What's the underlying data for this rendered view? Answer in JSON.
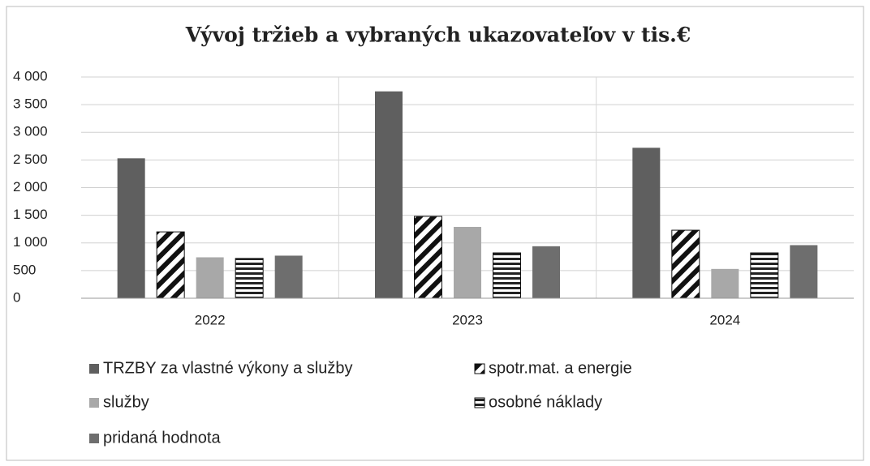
{
  "chart_data": {
    "type": "bar",
    "title": "Vývoj tržieb a vybraných ukazovateľov v tis.€",
    "categories": [
      "2022",
      "2023",
      "2024"
    ],
    "series": [
      {
        "name": "TRZBY za vlastné výkony a služby",
        "color": "#5f5f5f",
        "values": [
          2530,
          3740,
          2720
        ]
      },
      {
        "name": "spotr.mat. a energie",
        "color": "#111111",
        "pattern": "diagonal",
        "values": [
          1200,
          1480,
          1230
        ]
      },
      {
        "name": "služby",
        "color": "#a8a8a8",
        "values": [
          740,
          1290,
          530
        ]
      },
      {
        "name": "osobné náklady",
        "color": "#222222",
        "pattern": "horizontal",
        "values": [
          720,
          820,
          820
        ]
      },
      {
        "name": "pridaná hodnota",
        "color": "#6e6e6e",
        "values": [
          770,
          940,
          960
        ]
      }
    ],
    "ylim": [
      0,
      4000
    ],
    "yticks": [
      0,
      500,
      {
        "value": 1000,
        "label": "1 000"
      },
      {
        "value": 1500,
        "label": "1 500"
      },
      {
        "value": 2000,
        "label": "2 000"
      },
      {
        "value": 2500,
        "label": "2 500"
      },
      {
        "value": 3000,
        "label": "3 000"
      },
      {
        "value": 3500,
        "label": "3 500"
      },
      {
        "value": 4000,
        "label": "4 000"
      }
    ],
    "grid": true,
    "legend": "bottom"
  }
}
